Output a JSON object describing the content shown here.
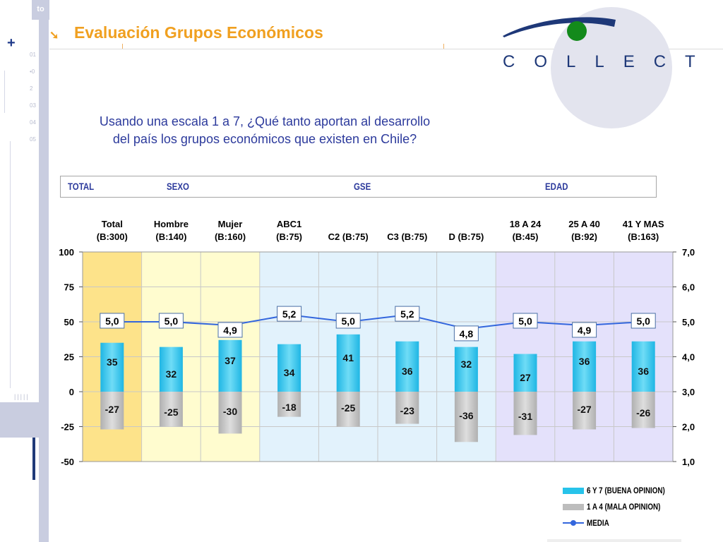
{
  "header": {
    "title": "Evaluación Grupos Económicos",
    "logo_text": "COLLECT",
    "sidebar_label": "to",
    "sidebar_numbers": [
      "01",
      "•0",
      "2",
      "03",
      "04",
      "05"
    ]
  },
  "question": {
    "line1": "Usando una escala 1 a 7, ¿Qué tanto aportan al desarrollo",
    "line2": "del país los grupos económicos que existen en Chile?"
  },
  "groups": [
    "TOTAL",
    "SEXO",
    "GSE",
    "EDAD"
  ],
  "chart_data": {
    "type": "bar",
    "categories": [
      [
        "Total",
        "(B:300)"
      ],
      [
        "Hombre",
        "(B:140)"
      ],
      [
        "Mujer",
        "(B:160)"
      ],
      [
        "ABC1",
        "(B:75)"
      ],
      [
        "C2 (B:75)"
      ],
      [
        "C3 (B:75)"
      ],
      [
        "D (B:75)"
      ],
      [
        "18 A 24",
        "(B:45)"
      ],
      [
        "25 A 40",
        "(B:92)"
      ],
      [
        "41 Y MAS",
        "(B:163)"
      ]
    ],
    "series": [
      {
        "name": "6 Y 7 (BUENA OPINION)",
        "values": [
          35,
          32,
          37,
          34,
          41,
          36,
          32,
          27,
          36,
          36
        ],
        "color": "#27c3ea"
      },
      {
        "name": "1 A 4 (MALA OPINION)",
        "values": [
          -27,
          -25,
          -30,
          -18,
          -25,
          -23,
          -36,
          -31,
          -27,
          -26
        ],
        "color": "#bdbdbd"
      },
      {
        "name": "MEDIA",
        "values": [
          5.0,
          5.0,
          4.9,
          5.2,
          5.0,
          5.2,
          4.8,
          5.0,
          4.9,
          5.0
        ],
        "labels": [
          "5,0",
          "5,0",
          "4,9",
          "5,2",
          "5,0",
          "5,2",
          "4,8",
          "5,0",
          "4,9",
          "5,0"
        ],
        "color": "#3366dd",
        "axis": "right"
      }
    ],
    "ylim": [
      -50,
      100
    ],
    "yticks": [
      100,
      75,
      50,
      25,
      0,
      -25,
      -50
    ],
    "y2lim": [
      1.0,
      7.0
    ],
    "y2ticks": [
      "7,0",
      "6,0",
      "5,0",
      "4,0",
      "3,0",
      "2,0",
      "1,0"
    ],
    "grid": true,
    "legend": "bottom-right",
    "group_bands": [
      {
        "from": 0,
        "to": 0,
        "color": "#fde38a"
      },
      {
        "from": 1,
        "to": 2,
        "color": "#fffccf"
      },
      {
        "from": 3,
        "to": 6,
        "color": "#e2f2fc"
      },
      {
        "from": 7,
        "to": 9,
        "color": "#e4e1fb"
      }
    ]
  }
}
